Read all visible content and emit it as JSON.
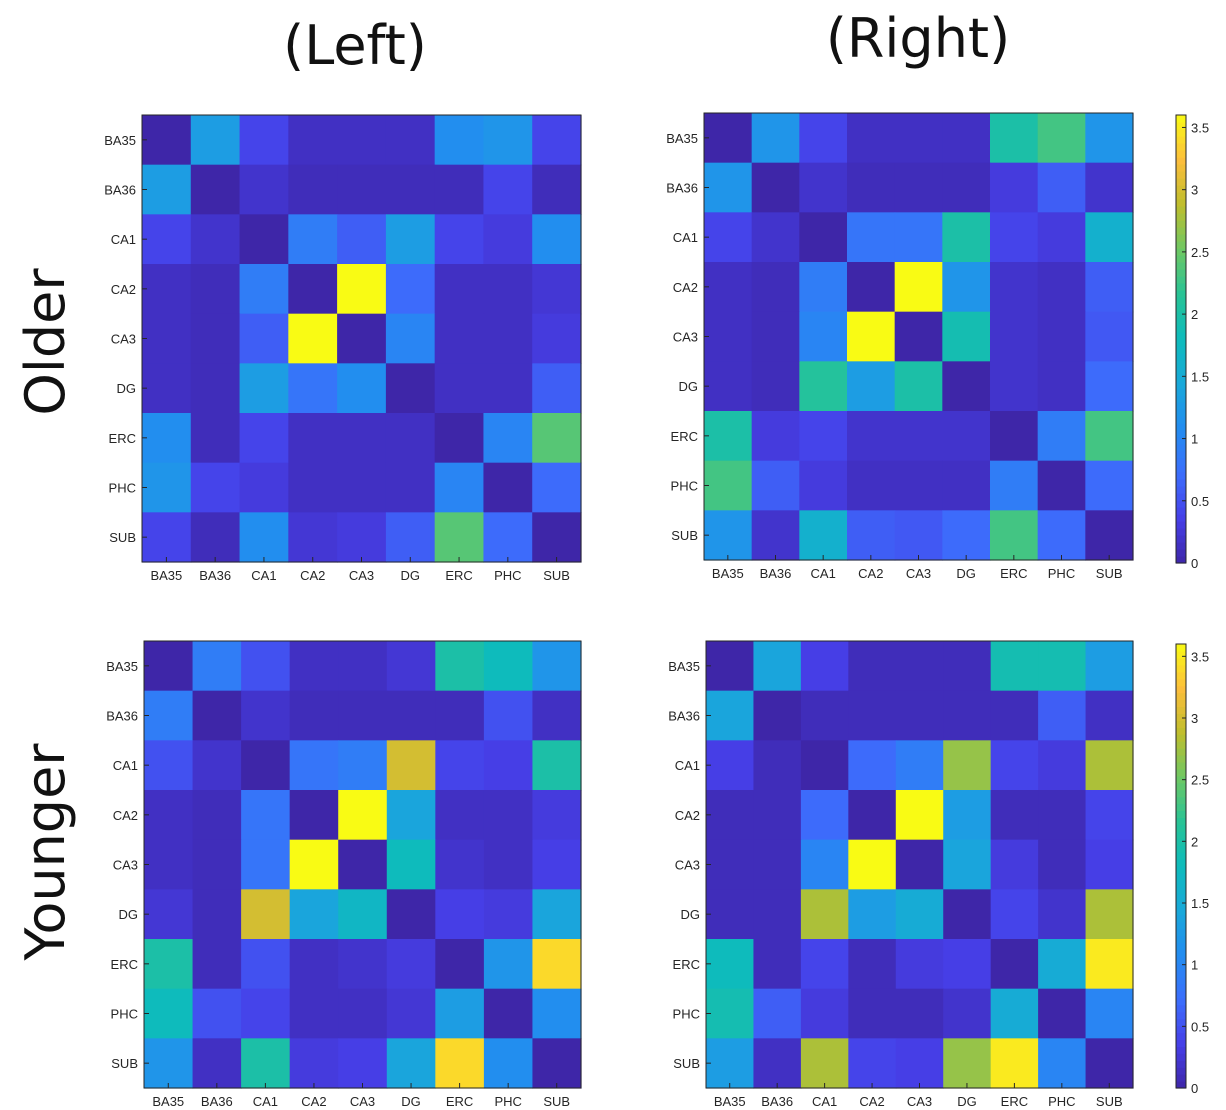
{
  "figure": {
    "col_titles": [
      "(Left)",
      "(Right)"
    ],
    "row_titles": [
      "Older",
      "Younger"
    ],
    "colorbar": {
      "range": [
        0,
        3.6
      ],
      "ticks": [
        0,
        0.5,
        1,
        1.5,
        2,
        2.5,
        3,
        3.5
      ],
      "tick_labels": [
        "0",
        "0.5",
        "1",
        "1.5",
        "2",
        "2.5",
        "3",
        "3.5"
      ],
      "colormap": "parula"
    }
  },
  "chart_data": [
    {
      "type": "heatmap",
      "panel": "Older (Left)",
      "row_labels": [
        "BA35",
        "BA36",
        "CA1",
        "CA2",
        "CA3",
        "DG",
        "ERC",
        "PHC",
        "SUB"
      ],
      "col_labels": [
        "BA35",
        "BA36",
        "CA1",
        "CA2",
        "CA3",
        "DG",
        "ERC",
        "PHC",
        "SUB"
      ],
      "values": [
        [
          0.0,
          1.3,
          0.4,
          0.15,
          0.15,
          0.15,
          1.1,
          1.2,
          0.4
        ],
        [
          1.3,
          0.0,
          0.2,
          0.1,
          0.1,
          0.1,
          0.1,
          0.4,
          0.1
        ],
        [
          0.4,
          0.2,
          0.0,
          0.9,
          0.6,
          1.3,
          0.4,
          0.3,
          1.1
        ],
        [
          0.15,
          0.1,
          0.9,
          0.0,
          3.6,
          0.7,
          0.15,
          0.15,
          0.25
        ],
        [
          0.15,
          0.1,
          0.6,
          3.6,
          0.0,
          1.0,
          0.15,
          0.15,
          0.3
        ],
        [
          0.15,
          0.1,
          1.3,
          0.8,
          1.1,
          0.0,
          0.15,
          0.15,
          0.6
        ],
        [
          1.1,
          0.1,
          0.4,
          0.15,
          0.15,
          0.15,
          0.0,
          1.0,
          2.4
        ],
        [
          1.2,
          0.4,
          0.3,
          0.15,
          0.15,
          0.15,
          1.0,
          0.0,
          0.7
        ],
        [
          0.4,
          0.1,
          1.1,
          0.25,
          0.3,
          0.6,
          2.4,
          0.7,
          0.0
        ]
      ]
    },
    {
      "type": "heatmap",
      "panel": "Older (Right)",
      "row_labels": [
        "BA35",
        "BA36",
        "CA1",
        "CA2",
        "CA3",
        "DG",
        "ERC",
        "PHC",
        "SUB"
      ],
      "col_labels": [
        "BA35",
        "BA36",
        "CA1",
        "CA2",
        "CA3",
        "DG",
        "ERC",
        "PHC",
        "SUB"
      ],
      "values": [
        [
          0.0,
          1.2,
          0.4,
          0.15,
          0.15,
          0.15,
          2.0,
          2.3,
          1.2
        ],
        [
          1.2,
          0.0,
          0.2,
          0.1,
          0.1,
          0.1,
          0.3,
          0.6,
          0.2
        ],
        [
          0.4,
          0.2,
          0.0,
          0.8,
          0.8,
          2.0,
          0.4,
          0.3,
          1.6
        ],
        [
          0.15,
          0.1,
          0.9,
          0.0,
          3.6,
          1.2,
          0.2,
          0.15,
          0.6
        ],
        [
          0.15,
          0.1,
          1.0,
          3.6,
          0.0,
          1.9,
          0.2,
          0.15,
          0.55
        ],
        [
          0.15,
          0.1,
          2.1,
          1.3,
          2.0,
          0.0,
          0.2,
          0.15,
          0.7
        ],
        [
          2.0,
          0.3,
          0.4,
          0.2,
          0.2,
          0.2,
          0.0,
          0.9,
          2.3
        ],
        [
          2.3,
          0.6,
          0.3,
          0.15,
          0.15,
          0.15,
          0.9,
          0.0,
          0.7
        ],
        [
          1.2,
          0.2,
          1.6,
          0.6,
          0.55,
          0.7,
          2.3,
          0.7,
          0.0
        ]
      ]
    },
    {
      "type": "heatmap",
      "panel": "Younger (Left)",
      "row_labels": [
        "BA35",
        "BA36",
        "CA1",
        "CA2",
        "CA3",
        "DG",
        "ERC",
        "PHC",
        "SUB"
      ],
      "col_labels": [
        "BA35",
        "BA36",
        "CA1",
        "CA2",
        "CA3",
        "DG",
        "ERC",
        "PHC",
        "SUB"
      ],
      "values": [
        [
          0.0,
          0.9,
          0.5,
          0.15,
          0.15,
          0.25,
          2.0,
          1.8,
          1.2
        ],
        [
          0.9,
          0.0,
          0.2,
          0.1,
          0.1,
          0.1,
          0.1,
          0.5,
          0.15
        ],
        [
          0.5,
          0.2,
          0.0,
          0.8,
          0.9,
          3.0,
          0.4,
          0.35,
          2.0
        ],
        [
          0.15,
          0.1,
          0.8,
          0.0,
          3.6,
          1.4,
          0.15,
          0.15,
          0.3
        ],
        [
          0.15,
          0.1,
          0.8,
          3.6,
          0.0,
          1.8,
          0.2,
          0.15,
          0.35
        ],
        [
          0.25,
          0.1,
          3.0,
          1.4,
          1.7,
          0.0,
          0.35,
          0.3,
          1.4
        ],
        [
          2.0,
          0.1,
          0.5,
          0.15,
          0.2,
          0.3,
          0.0,
          1.2,
          3.4
        ],
        [
          1.8,
          0.5,
          0.4,
          0.15,
          0.15,
          0.25,
          1.3,
          0.0,
          1.1
        ],
        [
          1.2,
          0.15,
          2.0,
          0.3,
          0.35,
          1.4,
          3.4,
          1.1,
          0.0
        ]
      ]
    },
    {
      "type": "heatmap",
      "panel": "Younger (Right)",
      "row_labels": [
        "BA35",
        "BA36",
        "CA1",
        "CA2",
        "CA3",
        "DG",
        "ERC",
        "PHC",
        "SUB"
      ],
      "col_labels": [
        "BA35",
        "BA36",
        "CA1",
        "CA2",
        "CA3",
        "DG",
        "ERC",
        "PHC",
        "SUB"
      ],
      "values": [
        [
          0.0,
          1.4,
          0.35,
          0.1,
          0.1,
          0.1,
          1.9,
          1.9,
          1.3
        ],
        [
          1.4,
          0.0,
          0.1,
          0.1,
          0.1,
          0.1,
          0.1,
          0.6,
          0.15
        ],
        [
          0.35,
          0.1,
          0.0,
          0.7,
          0.9,
          2.7,
          0.4,
          0.3,
          2.8
        ],
        [
          0.1,
          0.1,
          0.7,
          0.0,
          3.6,
          1.3,
          0.1,
          0.1,
          0.4
        ],
        [
          0.1,
          0.1,
          1.0,
          3.6,
          0.0,
          1.4,
          0.3,
          0.1,
          0.35
        ],
        [
          0.1,
          0.1,
          2.8,
          1.3,
          1.5,
          0.0,
          0.4,
          0.2,
          2.8
        ],
        [
          1.8,
          0.1,
          0.4,
          0.1,
          0.3,
          0.35,
          0.0,
          1.5,
          3.5
        ],
        [
          1.9,
          0.6,
          0.3,
          0.1,
          0.1,
          0.2,
          1.5,
          0.0,
          1.0
        ],
        [
          1.3,
          0.15,
          2.8,
          0.4,
          0.35,
          2.7,
          3.5,
          1.0,
          0.0
        ]
      ]
    }
  ]
}
